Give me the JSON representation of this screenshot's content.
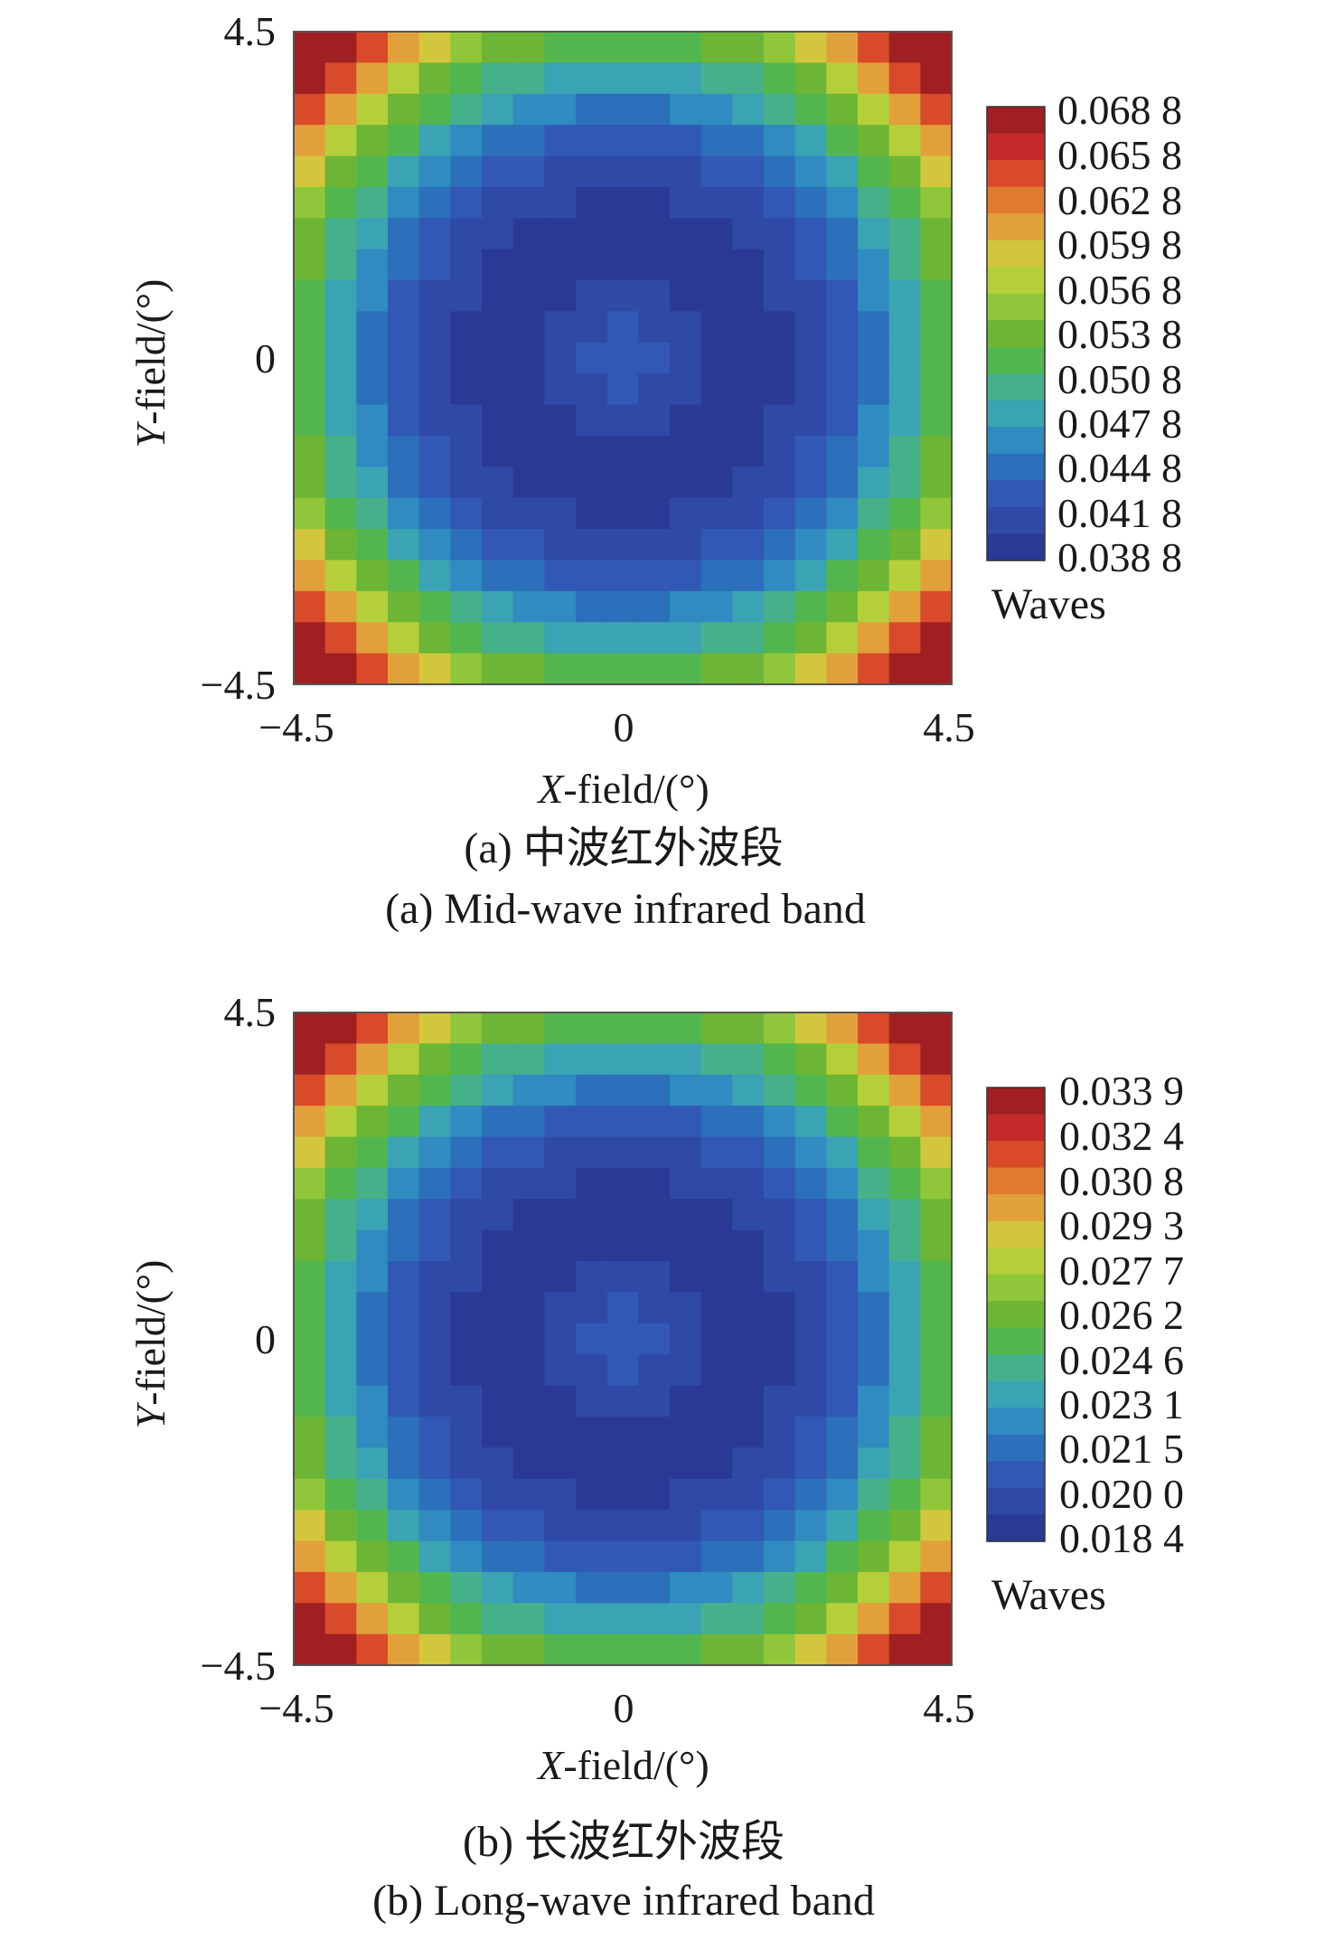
{
  "chart_data": [
    {
      "type": "heatmap",
      "caption_zh": "(a) 中波红外波段",
      "caption_en": "(a) Mid-wave infrared band",
      "xlabel_var": "X",
      "xlabel_rest": "-field/(°)",
      "ylabel_var": "Y",
      "ylabel_rest": "-field/(°)",
      "xlim": [
        -4.5,
        4.5
      ],
      "ylim": [
        -4.5,
        4.5
      ],
      "xticks": [
        "−4.5",
        "0",
        "4.5"
      ],
      "yticks": [
        "−4.5",
        "0",
        "4.5"
      ],
      "grid_size": 21,
      "value_min": 0.0388,
      "value_max": 0.0688,
      "colorbar": {
        "unit": "Waves",
        "labels": [
          "0.068 8",
          "0.065 8",
          "0.062 8",
          "0.059 8",
          "0.056 8",
          "0.053 8",
          "0.050 8",
          "0.047 8",
          "0.044 8",
          "0.041 8",
          "0.038 8"
        ]
      }
    },
    {
      "type": "heatmap",
      "caption_zh": "(b) 长波红外波段",
      "caption_en": "(b) Long-wave infrared band",
      "xlabel_var": "X",
      "xlabel_rest": "-field/(°)",
      "ylabel_var": "Y",
      "ylabel_rest": "-field/(°)",
      "xlim": [
        -4.5,
        4.5
      ],
      "ylim": [
        -4.5,
        4.5
      ],
      "xticks": [
        "−4.5",
        "0",
        "4.5"
      ],
      "yticks": [
        "−4.5",
        "0",
        "4.5"
      ],
      "grid_size": 21,
      "value_min": 0.0184,
      "value_max": 0.0339,
      "colorbar": {
        "unit": "Waves",
        "labels": [
          "0.033 9",
          "0.032 4",
          "0.030 8",
          "0.029 3",
          "0.027 7",
          "0.026 2",
          "0.024 6",
          "0.023 1",
          "0.021 5",
          "0.020 0",
          "0.018 4"
        ]
      }
    }
  ],
  "colormap": [
    "#2a3a94",
    "#2f4aa6",
    "#3158b4",
    "#2c6fba",
    "#2f8bc0",
    "#3aa3b4",
    "#45b08a",
    "#52b64f",
    "#6cb535",
    "#8fc63a",
    "#b5cf3a",
    "#d2c63c",
    "#e2a03a",
    "#e07a2e",
    "#d94a2a",
    "#c52a2a",
    "#9f1f22"
  ]
}
